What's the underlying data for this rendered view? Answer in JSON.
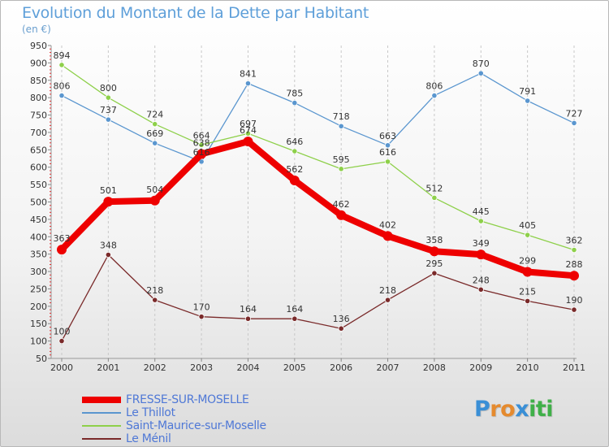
{
  "title": "Evolution du Montant de la Dette par Habitant",
  "unit_label": "(en €)",
  "logo": {
    "letters": [
      {
        "t": "P",
        "color": "#3a8fd6"
      },
      {
        "t": "r",
        "color": "#e58a2e"
      },
      {
        "t": "o",
        "color": "#e58a2e"
      },
      {
        "t": "x",
        "color": "#3a8fd6"
      },
      {
        "t": "i",
        "color": "#3fb048"
      },
      {
        "t": "t",
        "color": "#3fb048"
      },
      {
        "t": "i",
        "color": "#3fb048"
      }
    ]
  },
  "chart_data": {
    "type": "line",
    "title": "Evolution du Montant de la Dette par Habitant",
    "subtitle": "(en €)",
    "xlabel": "",
    "ylabel": "",
    "x": [
      "2000",
      "2001",
      "2002",
      "2003",
      "2004",
      "2005",
      "2006",
      "2007",
      "2008",
      "2009",
      "2010",
      "2011"
    ],
    "x_tick_labels": [
      "2000",
      "2001",
      "2002",
      "2003",
      "2004",
      "2005",
      "2006",
      "2007",
      "2008",
      "2009",
      "2010",
      "2011"
    ],
    "ylim": [
      50,
      950
    ],
    "y_ticks": [
      50,
      100,
      150,
      200,
      250,
      300,
      350,
      400,
      450,
      500,
      550,
      600,
      650,
      700,
      750,
      800,
      850,
      900,
      950
    ],
    "y_tick_labels": [
      "50",
      "100",
      "150",
      "200",
      "250",
      "300",
      "350",
      "400",
      "450",
      "500",
      "550",
      "600",
      "650",
      "700",
      "750",
      "800",
      "850",
      "900",
      "950"
    ],
    "grid": "vertical dashed",
    "legend_position": "bottom-left",
    "series": [
      {
        "name": "FRESSE-SUR-MOSELLE",
        "color": "#ee0000",
        "bold": true,
        "values": [
          363,
          501,
          504,
          638,
          674,
          562,
          462,
          402,
          358,
          349,
          299,
          288
        ],
        "labels": [
          "363",
          "501",
          "504",
          "638",
          "674",
          "562",
          "462",
          "402",
          "358",
          "349",
          "299",
          "288"
        ]
      },
      {
        "name": "Le Thillot",
        "color": "#5a96cf",
        "bold": false,
        "values": [
          806,
          737,
          669,
          616,
          841,
          785,
          718,
          663,
          806,
          870,
          791,
          727
        ],
        "labels": [
          "806",
          "737",
          "669",
          "616",
          "841",
          "785",
          "718",
          "663",
          "806",
          "870",
          "791",
          "727"
        ]
      },
      {
        "name": "Saint-Maurice-sur-Moselle",
        "color": "#8ed04a",
        "bold": false,
        "values": [
          894,
          800,
          724,
          664,
          697,
          646,
          595,
          616,
          512,
          445,
          405,
          362
        ],
        "labels": [
          "894",
          "800",
          "724",
          "664",
          "697",
          "646",
          "595",
          "616",
          "512",
          "445",
          "405",
          "362"
        ]
      },
      {
        "name": "Le Ménil",
        "color": "#7a2a2a",
        "bold": false,
        "values": [
          100,
          348,
          218,
          170,
          164,
          164,
          136,
          218,
          295,
          248,
          215,
          190
        ],
        "labels": [
          "100",
          "348",
          "218",
          "170",
          "164",
          "164",
          "136",
          "218",
          "295",
          "248",
          "215",
          "190"
        ]
      }
    ]
  }
}
